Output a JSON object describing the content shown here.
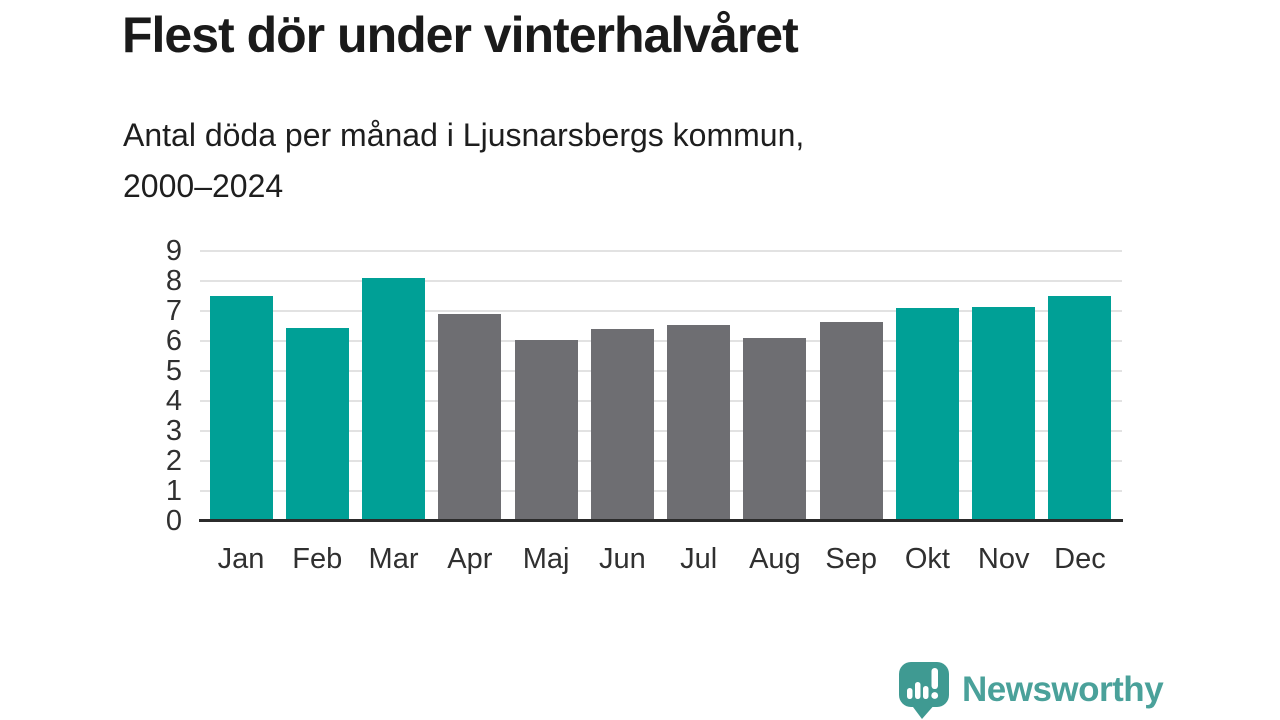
{
  "header": {
    "title": "Flest dör under vinterhalvåret",
    "subtitle_lines": [
      "Antal döda per månad i Ljusnarsbergs kommun,",
      "2000–2024"
    ]
  },
  "chart_data": {
    "type": "bar",
    "title": "Flest dör under vinterhalvåret",
    "subtitle": "Antal döda per månad i Ljusnarsbergs kommun, 2000–2024",
    "categories": [
      "Jan",
      "Feb",
      "Mar",
      "Apr",
      "Maj",
      "Jun",
      "Jul",
      "Aug",
      "Sep",
      "Okt",
      "Nov",
      "Dec"
    ],
    "values": [
      7.5,
      6.45,
      8.1,
      6.9,
      6.05,
      6.4,
      6.55,
      6.1,
      6.65,
      7.1,
      7.15,
      7.5
    ],
    "highlighted": [
      true,
      true,
      true,
      false,
      false,
      false,
      false,
      false,
      false,
      true,
      true,
      true
    ],
    "colors": {
      "highlight": "#00a096",
      "muted": "#6e6e72",
      "grid": "#e2e2e2",
      "axis": "#2b2b2b"
    },
    "xlabel": "",
    "ylabel": "",
    "ylim": [
      0,
      9
    ],
    "yticks": [
      0,
      1,
      2,
      3,
      4,
      5,
      6,
      7,
      8,
      9
    ],
    "grid": true,
    "legend": "none"
  },
  "footer": {
    "brand": "Newsworthy",
    "brand_text_color": "#4aa19a",
    "brand_icon_color": "#3f9a92"
  }
}
